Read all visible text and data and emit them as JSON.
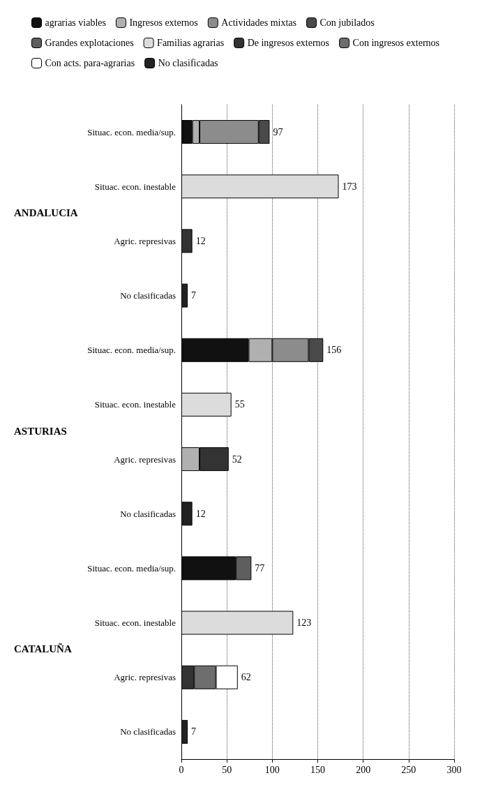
{
  "chart_data": {
    "type": "bar",
    "orientation": "horizontal",
    "stacked": true,
    "categories": [
      "Situac. econ. media/sup.",
      "Situac. econ. inestable",
      "Agric. represivas",
      "No clasificadas",
      "Situac. econ. media/sup.",
      "Situac. econ. inestable",
      "Agric. represivas",
      "No clasificadas",
      "Situac. econ. media/sup.",
      "Situac. econ. inestable",
      "Agric. represivas",
      "No clasificadas"
    ],
    "series": [
      {
        "name": "agrarias viables",
        "color": "#111111",
        "values": [
          12,
          null,
          null,
          null,
          74,
          null,
          null,
          null,
          60,
          null,
          null,
          null
        ]
      },
      {
        "name": "Ingresos externos",
        "color": "#b0b0b0",
        "values": [
          8,
          null,
          null,
          null,
          26,
          null,
          20,
          null,
          null,
          null,
          null,
          null
        ]
      },
      {
        "name": "Actividades mixtas",
        "color": "#8c8c8c",
        "values": [
          65,
          null,
          null,
          null,
          40,
          null,
          null,
          null,
          null,
          null,
          null,
          null
        ]
      },
      {
        "name": "Con jubilados",
        "color": "#4a4a4a",
        "values": [
          12,
          null,
          null,
          null,
          16,
          null,
          null,
          null,
          null,
          null,
          null,
          null
        ]
      },
      {
        "name": "Grandes explotaciones",
        "color": "#5e5e5e",
        "values": [
          null,
          null,
          null,
          null,
          null,
          null,
          null,
          null,
          17,
          null,
          null,
          null
        ]
      },
      {
        "name": "Familias agrarias",
        "color": "#dcdcdc",
        "values": [
          null,
          173,
          null,
          null,
          null,
          55,
          null,
          null,
          null,
          123,
          null,
          null
        ]
      },
      {
        "name": "De ingresos externos",
        "color": "#333333",
        "values": [
          null,
          null,
          12,
          null,
          null,
          null,
          32,
          null,
          null,
          null,
          14,
          null
        ]
      },
      {
        "name": "Con ingresos externos",
        "color": "#6e6e6e",
        "values": [
          null,
          null,
          null,
          null,
          null,
          null,
          null,
          null,
          null,
          null,
          24,
          null
        ]
      },
      {
        "name": "Con acts. para-agrarias",
        "color": "#ffffff",
        "values": [
          null,
          null,
          null,
          null,
          null,
          null,
          null,
          null,
          null,
          null,
          24,
          null
        ]
      },
      {
        "name": "No clasificadas",
        "color": "#222222",
        "values": [
          null,
          null,
          null,
          7,
          null,
          null,
          null,
          12,
          null,
          null,
          null,
          7
        ]
      }
    ],
    "totals": [
      "97",
      "173",
      "12",
      "7",
      "156",
      "55",
      "52",
      "12",
      "77",
      "123",
      "62",
      "7"
    ],
    "annotations": [
      "ANDALUCIA",
      "ASTURIAS",
      "CATALUÑA"
    ],
    "xlim": [
      0,
      300
    ],
    "xticks": [
      0,
      50,
      100,
      150,
      200,
      250,
      300
    ],
    "grid": "x",
    "legend": "top"
  }
}
